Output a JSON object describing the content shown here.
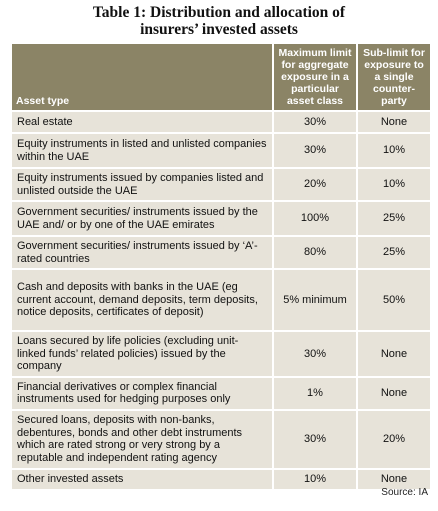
{
  "header": {
    "title_line1": "Table 1: Distribution and allocation of",
    "title_line2": "insurers’ invested assets"
  },
  "table": {
    "columns": [
      "Asset type",
      "Maximum limit for aggregate exposure in a particular asset class",
      "Sub-limit for exposure to a single counter-party"
    ],
    "rows": [
      [
        "Real estate",
        "30%",
        "None"
      ],
      [
        "Equity instruments in listed and unlisted companies within the UAE",
        "30%",
        "10%"
      ],
      [
        "Equity instruments issued by companies listed and unlisted outside the UAE",
        "20%",
        "10%"
      ],
      [
        "Government securities/ instruments issued by the UAE and/ or by one of the UAE emirates",
        "100%",
        "25%"
      ],
      [
        "Government securities/ instruments issued by ‘A’-rated countries",
        "80%",
        "25%"
      ],
      [
        "Cash and deposits with banks in the UAE (eg current account, demand deposits, term deposits, notice deposits, certificates of deposit)",
        "5% minimum",
        "50%"
      ],
      [
        "Loans secured by life policies (excluding unit-linked funds’ related policies) issued by the company",
        "30%",
        "None"
      ],
      [
        "Financial derivatives or complex financial instruments used for hedging purposes only",
        "1%",
        "None"
      ],
      [
        "Secured loans, deposits with non-banks, debentures, bonds and other debt instruments which are rated strong or very strong by a reputable and independent rating agency",
        "30%",
        "20%"
      ],
      [
        "Other invested assets",
        "10%",
        "None"
      ]
    ]
  },
  "footer": {
    "source": "Source: IA"
  }
}
